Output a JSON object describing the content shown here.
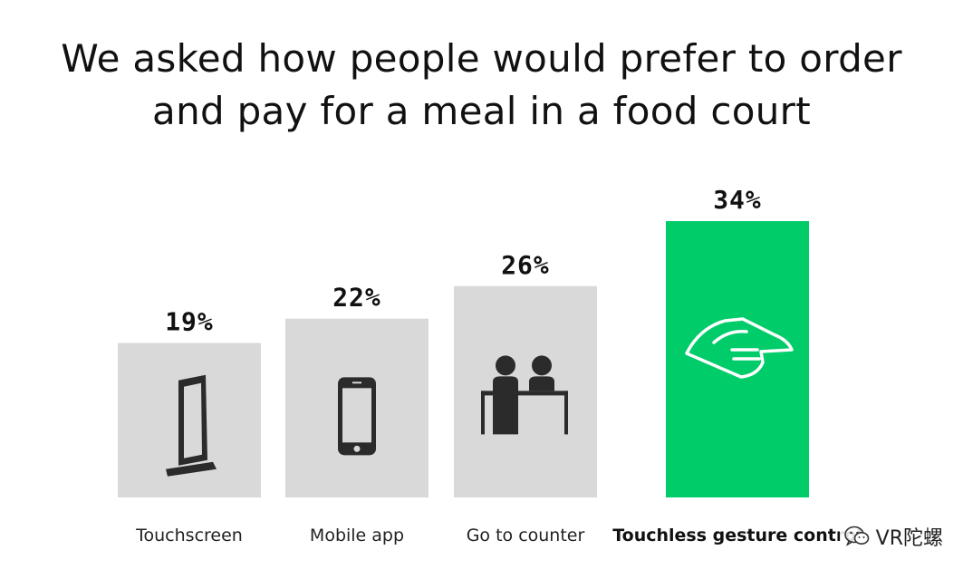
{
  "title": {
    "line1": "We asked how people would prefer to order",
    "line2": "and pay for a meal in a food court"
  },
  "colors": {
    "bar": "#d9d9d9",
    "highlight": "#00cc6a",
    "text": "#111111"
  },
  "watermark": {
    "text": "VR陀螺",
    "icon": "wechat-icon"
  },
  "chart_data": {
    "type": "bar",
    "title": "We asked how people would prefer to order and pay for a meal in a food court",
    "categories": [
      "Touchscreen",
      "Mobile app",
      "Go to counter",
      "Touchless gesture control"
    ],
    "values": [
      19,
      22,
      26,
      34
    ],
    "value_labels": [
      "19%",
      "22%",
      "26%",
      "34%"
    ],
    "unit": "%",
    "highlight_index": 3,
    "icons": [
      "touchscreen-kiosk-icon",
      "mobile-phone-icon",
      "counter-people-icon",
      "touchless-hand-icon"
    ],
    "xlabel": "",
    "ylabel": "",
    "grid": false,
    "legend": "none"
  }
}
